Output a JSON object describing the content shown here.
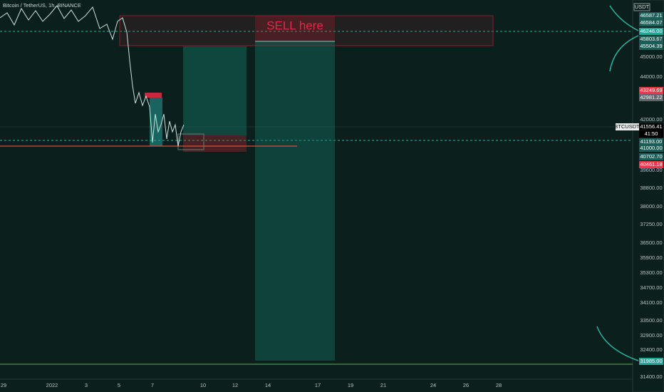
{
  "header": {
    "title": "Bitcoin / TetherUS, 1h, BINANCE",
    "currency": "USDT"
  },
  "annotation": {
    "text": "SELL here"
  },
  "symbol_label": "BTCUSDT",
  "price_axis": [
    "46587.21",
    "46584.07",
    "46246.00",
    "45803.67",
    "45504.39",
    "45000.00",
    "44000.00",
    "43249.69",
    "42981.22",
    "42000.00",
    "41556.41",
    "41:50",
    "41193.00",
    "41000.00",
    "40702.70",
    "40461.18",
    "39600.00",
    "38800.00",
    "38000.00",
    "37250.00",
    "36500.00",
    "35900.00",
    "35300.00",
    "34700.00",
    "34100.00",
    "33500.00",
    "32900.00",
    "32400.00",
    "31985.00",
    "31400.00"
  ],
  "time_axis": [
    "29",
    "2022",
    "3",
    "5",
    "7",
    "10",
    "12",
    "14",
    "17",
    "19",
    "21",
    "24",
    "26",
    "28"
  ]
}
